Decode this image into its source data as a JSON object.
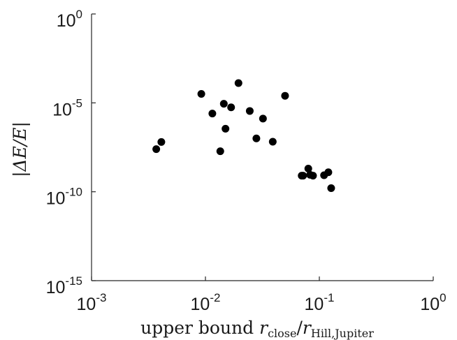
{
  "chart_data": {
    "type": "scatter",
    "title": "",
    "xlabel": {
      "prefix": "upper bound ",
      "var1": "r",
      "sub1": "close",
      "sep": "/",
      "var2": "r",
      "sub2": "Hill,Jupiter"
    },
    "ylabel": "|ΔE/E|",
    "x_scale": "log",
    "y_scale": "log",
    "xlim": [
      0.001,
      1
    ],
    "ylim": [
      1e-15,
      1
    ],
    "x_ticks": [
      {
        "value": 0.001,
        "base": "10",
        "exp": "-3"
      },
      {
        "value": 0.01,
        "base": "10",
        "exp": "-2"
      },
      {
        "value": 0.1,
        "base": "10",
        "exp": "-1"
      },
      {
        "value": 1,
        "base": "10",
        "exp": "0"
      }
    ],
    "y_ticks": [
      {
        "value": 1,
        "base": "10",
        "exp": "0"
      },
      {
        "value": 1e-05,
        "base": "10",
        "exp": "-5"
      },
      {
        "value": 1e-10,
        "base": "10",
        "exp": "-10"
      },
      {
        "value": 1e-15,
        "base": "10",
        "exp": "-15"
      }
    ],
    "grid": false,
    "marker_color": "#000000",
    "points": [
      {
        "x": 0.0037,
        "y": 2.5e-08
      },
      {
        "x": 0.0041,
        "y": 6.3e-08
      },
      {
        "x": 0.0092,
        "y": 3.2e-05
      },
      {
        "x": 0.0115,
        "y": 2.5e-06
      },
      {
        "x": 0.0135,
        "y": 1.9e-08
      },
      {
        "x": 0.0145,
        "y": 8.9e-06
      },
      {
        "x": 0.015,
        "y": 3.5e-07
      },
      {
        "x": 0.0168,
        "y": 5.6e-06
      },
      {
        "x": 0.0195,
        "y": 0.00013
      },
      {
        "x": 0.0245,
        "y": 3.5e-06
      },
      {
        "x": 0.028,
        "y": 1e-07
      },
      {
        "x": 0.032,
        "y": 1.3e-06
      },
      {
        "x": 0.039,
        "y": 6.5e-08
      },
      {
        "x": 0.05,
        "y": 2.5e-05
      },
      {
        "x": 0.07,
        "y": 8e-10
      },
      {
        "x": 0.072,
        "y": 8e-10
      },
      {
        "x": 0.08,
        "y": 2e-09
      },
      {
        "x": 0.083,
        "y": 9e-10
      },
      {
        "x": 0.088,
        "y": 8e-10
      },
      {
        "x": 0.11,
        "y": 8.5e-10
      },
      {
        "x": 0.12,
        "y": 1.25e-09
      },
      {
        "x": 0.127,
        "y": 1.6e-10
      }
    ]
  }
}
